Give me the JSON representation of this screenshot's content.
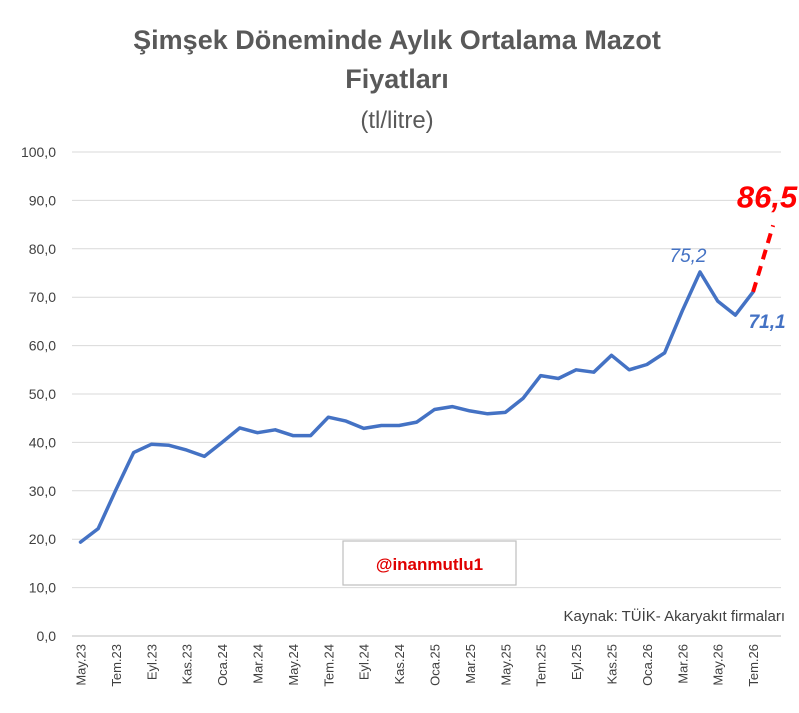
{
  "chart_data": {
    "type": "line",
    "title_line1": "Şimşek Döneminde Aylık Ortalama Mazot",
    "title_line2": "Fiyatları",
    "subtitle": "(tl/litre)",
    "ylim": [
      0,
      100
    ],
    "yticks": [
      "0,0",
      "10,0",
      "20,0",
      "30,0",
      "40,0",
      "50,0",
      "60,0",
      "70,0",
      "80,0",
      "90,0",
      "100,0"
    ],
    "ytick_values": [
      0,
      10,
      20,
      30,
      40,
      50,
      60,
      70,
      80,
      90,
      100
    ],
    "grid": true,
    "x": [
      "May.23",
      "Haz.23",
      "Tem.23",
      "Ağu.23",
      "Eyl.23",
      "Eki.23",
      "Kas.23",
      "Ara.23",
      "Oca.24",
      "Şub.24",
      "Mar.24",
      "Nis.24",
      "May.24",
      "Haz.24",
      "Tem.24",
      "Ağu.24",
      "Eyl.24",
      "Eki.24",
      "Kas.24",
      "Ara.24",
      "Oca.25",
      "Şub.25",
      "Mar.25",
      "Nis.25",
      "May.25",
      "Haz.25",
      "Tem.25",
      "Ağu.25",
      "Eyl.25",
      "Eki.25",
      "Kas.25",
      "Ara.25",
      "Oca.26",
      "Şub.26",
      "Mar.26",
      "Nis.26",
      "May.26",
      "Haz.26",
      "Tem.26"
    ],
    "x_tick_labels": [
      "May.23",
      "Tem.23",
      "Eyl.23",
      "Kas.23",
      "Oca.24",
      "Mar.24",
      "May.24",
      "Tem.24",
      "Eyl.24",
      "Kas.24",
      "Oca.25",
      "Mar.25",
      "May.25",
      "Tem.25",
      "Eyl.25",
      "Kas.25",
      "Oca.26",
      "Mar.26",
      "May.26",
      "Tem.26"
    ],
    "series": [
      {
        "color": "#4472c4",
        "values": [
          19.4,
          22.2,
          30.2,
          37.9,
          39.6,
          39.4,
          38.4,
          37.1,
          40.0,
          43.0,
          42.0,
          42.6,
          41.4,
          41.4,
          45.2,
          44.4,
          42.9,
          43.5,
          43.5,
          44.2,
          46.8,
          47.4,
          46.5,
          45.9,
          46.2,
          49.1,
          53.8,
          53.2,
          55.0,
          54.5,
          58.0,
          55.0,
          56.1,
          58.5,
          67.2,
          75.2,
          69.2,
          66.3,
          71.1
        ]
      },
      {
        "color": "#ff0000",
        "dashed": true,
        "from_index": 38,
        "from_value": 71.1,
        "to_value": 86.5
      }
    ],
    "annotations": [
      {
        "text": "75,2",
        "color": "#4472c4",
        "at_index": 35
      },
      {
        "text": "71,1",
        "color": "#4472c4",
        "at_index": 38
      },
      {
        "text": "86,5",
        "color": "#ff0000"
      }
    ],
    "source_text": "Kaynak: TÜİK- Akaryakıt firmaları",
    "watermark": "@inanmutlu1"
  }
}
